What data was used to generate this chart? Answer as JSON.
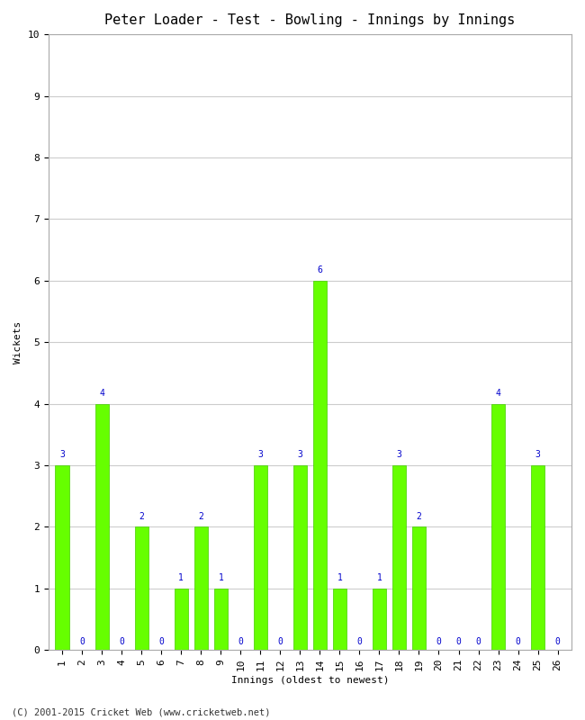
{
  "title": "Peter Loader - Test - Bowling - Innings by Innings",
  "xlabel": "Innings (oldest to newest)",
  "ylabel": "Wickets",
  "x_labels": [
    "1",
    "2",
    "3",
    "4",
    "5",
    "6",
    "7",
    "8",
    "9",
    "10",
    "11",
    "12",
    "13",
    "14",
    "15",
    "16",
    "17",
    "18",
    "19",
    "20",
    "21",
    "22",
    "23",
    "24",
    "25",
    "26"
  ],
  "values": [
    3,
    0,
    4,
    0,
    2,
    0,
    1,
    2,
    1,
    0,
    3,
    0,
    3,
    6,
    1,
    0,
    1,
    3,
    2,
    0,
    0,
    0,
    4,
    0,
    3,
    0
  ],
  "bar_color": "#66ff00",
  "bar_edge_color": "#44cc00",
  "label_color": "#0000cc",
  "ylim": [
    0,
    10
  ],
  "yticks": [
    0,
    1,
    2,
    3,
    4,
    5,
    6,
    7,
    8,
    9,
    10
  ],
  "background_color": "#ffffff",
  "grid_color": "#cccccc",
  "title_fontsize": 11,
  "axis_label_fontsize": 8,
  "tick_fontsize": 8,
  "value_label_fontsize": 7,
  "footer": "(C) 2001-2015 Cricket Web (www.cricketweb.net)"
}
